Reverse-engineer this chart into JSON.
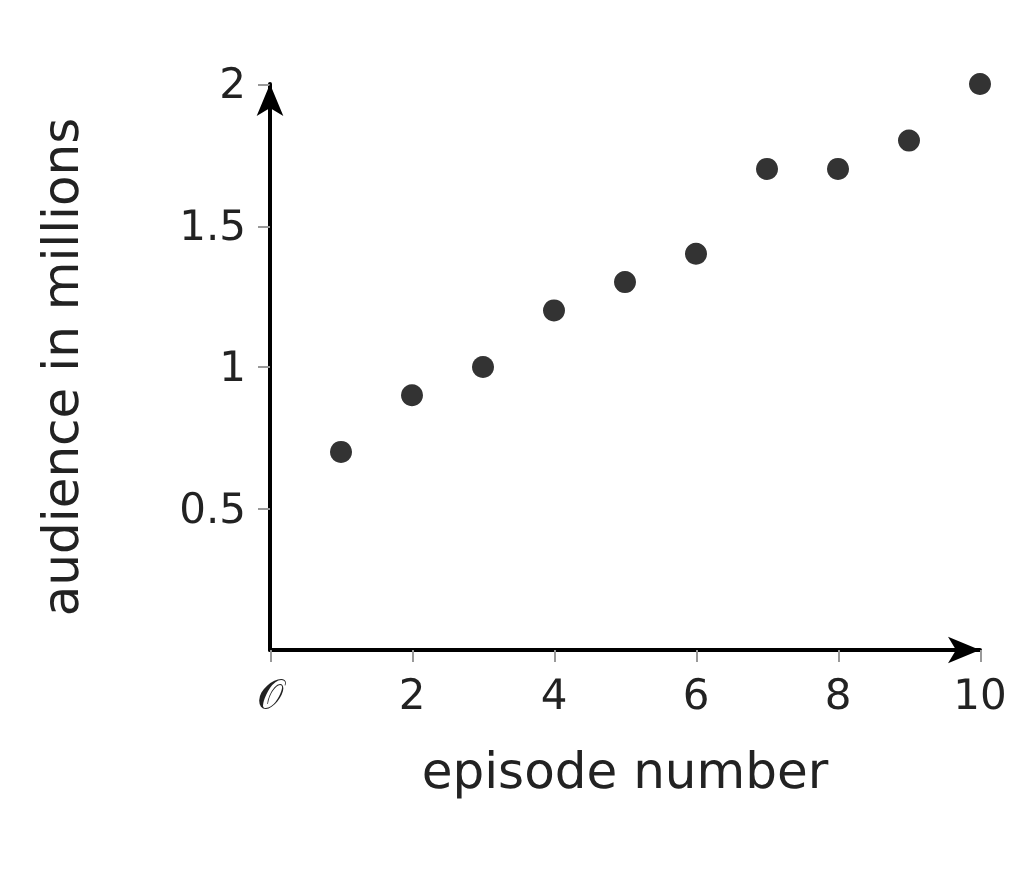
{
  "chart_data": {
    "type": "scatter",
    "xlabel": "episode number",
    "ylabel": "audience in millions",
    "x": [
      1,
      2,
      3,
      4,
      5,
      6,
      7,
      8,
      9,
      10
    ],
    "values": [
      0.7,
      0.9,
      1.0,
      1.2,
      1.3,
      1.4,
      1.7,
      1.7,
      1.8,
      2.0
    ],
    "color": "#000000",
    "marker": "circle",
    "xlim": [
      0,
      10
    ],
    "ylim": [
      0,
      2
    ],
    "xticks": [
      {
        "value": 0,
        "label": "𝒪"
      },
      2,
      4,
      6,
      8,
      10
    ],
    "yticks": [
      0.5,
      1,
      1.5,
      2
    ]
  }
}
